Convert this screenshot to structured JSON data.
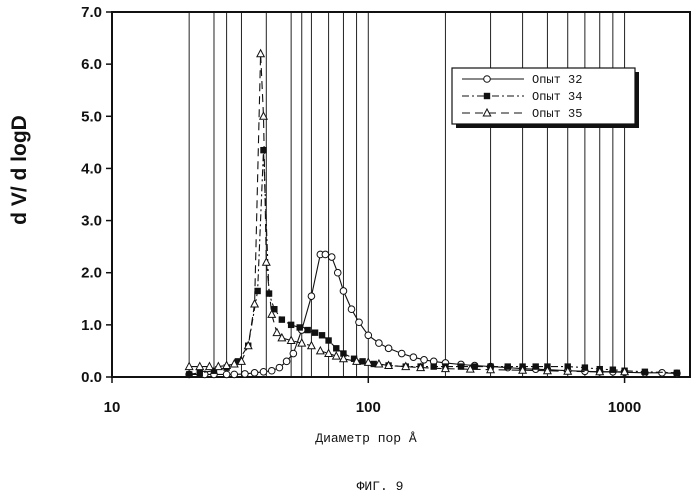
{
  "chart_data": {
    "type": "line",
    "title": "",
    "xlabel": "Диаметр пор Å",
    "ylabel": "d V/ d logD",
    "caption": "ФИГ. 9",
    "x_scale": "log",
    "xlim": [
      10,
      1800
    ],
    "ylim": [
      0,
      7
    ],
    "x_tick_labels": [
      "10",
      "100",
      "1000"
    ],
    "x_ticks": [
      10,
      100,
      1000
    ],
    "y_tick_labels": [
      "0.0",
      "1.0",
      "2.0",
      "3.0",
      "4.0",
      "5.0",
      "6.0",
      "7.0"
    ],
    "y_ticks": [
      0,
      1,
      2,
      3,
      4,
      5,
      6,
      7
    ],
    "grid": "vertical",
    "vertical_gridlines": [
      20,
      25,
      28,
      32,
      40,
      50,
      55,
      60,
      70,
      80,
      90,
      100,
      200,
      300,
      400,
      500,
      600,
      700,
      800,
      900,
      1000
    ],
    "legend_position": "top-right",
    "series": [
      {
        "name": "Опыт 32",
        "marker": "circle-open",
        "dash": "solid",
        "x": [
          20,
          23,
          25,
          28,
          30,
          33,
          36,
          39,
          42,
          45,
          48,
          51,
          55,
          60,
          65,
          68,
          72,
          76,
          80,
          86,
          92,
          100,
          110,
          120,
          135,
          150,
          165,
          180,
          200,
          230,
          260,
          300,
          350,
          400,
          450,
          500,
          600,
          700,
          800,
          900,
          1000,
          1200,
          1400,
          1600
        ],
        "y": [
          0.05,
          0.05,
          0.05,
          0.05,
          0.05,
          0.06,
          0.08,
          0.1,
          0.12,
          0.18,
          0.3,
          0.45,
          0.9,
          1.55,
          2.35,
          2.35,
          2.3,
          2.0,
          1.65,
          1.3,
          1.05,
          0.8,
          0.65,
          0.55,
          0.45,
          0.38,
          0.33,
          0.3,
          0.27,
          0.24,
          0.22,
          0.2,
          0.18,
          0.16,
          0.15,
          0.14,
          0.12,
          0.11,
          0.1,
          0.1,
          0.09,
          0.08,
          0.08,
          0.07
        ]
      },
      {
        "name": "Опыт 34",
        "marker": "square-filled",
        "dash": "dash-dot",
        "x": [
          20,
          22,
          25,
          28,
          31,
          34,
          37,
          39,
          41,
          43,
          46,
          50,
          54,
          58,
          62,
          66,
          70,
          75,
          80,
          88,
          95,
          105,
          120,
          140,
          160,
          180,
          200,
          230,
          260,
          300,
          350,
          400,
          450,
          500,
          600,
          700,
          800,
          900,
          1000,
          1200,
          1600
        ],
        "y": [
          0.05,
          0.08,
          0.12,
          0.18,
          0.3,
          0.6,
          1.65,
          4.35,
          1.6,
          1.3,
          1.1,
          1.0,
          0.95,
          0.9,
          0.85,
          0.8,
          0.7,
          0.55,
          0.45,
          0.35,
          0.3,
          0.25,
          0.22,
          0.2,
          0.2,
          0.2,
          0.2,
          0.2,
          0.2,
          0.2,
          0.2,
          0.2,
          0.2,
          0.2,
          0.2,
          0.18,
          0.15,
          0.14,
          0.12,
          0.1,
          0.08
        ]
      },
      {
        "name": "Опыт 35",
        "marker": "triangle-open",
        "dash": "dashed",
        "x": [
          20,
          22,
          24,
          26,
          28,
          30,
          32,
          34,
          36,
          38,
          39,
          40,
          42,
          44,
          46,
          50,
          55,
          60,
          65,
          70,
          75,
          80,
          90,
          100,
          110,
          120,
          140,
          160,
          200,
          250,
          300,
          400,
          500,
          600,
          800,
          1000
        ],
        "y": [
          0.2,
          0.2,
          0.2,
          0.2,
          0.22,
          0.25,
          0.3,
          0.6,
          1.4,
          6.2,
          5.0,
          2.2,
          1.2,
          0.85,
          0.75,
          0.7,
          0.65,
          0.6,
          0.5,
          0.45,
          0.4,
          0.35,
          0.3,
          0.28,
          0.25,
          0.22,
          0.2,
          0.18,
          0.16,
          0.15,
          0.14,
          0.13,
          0.12,
          0.11,
          0.1,
          0.1
        ]
      }
    ]
  }
}
